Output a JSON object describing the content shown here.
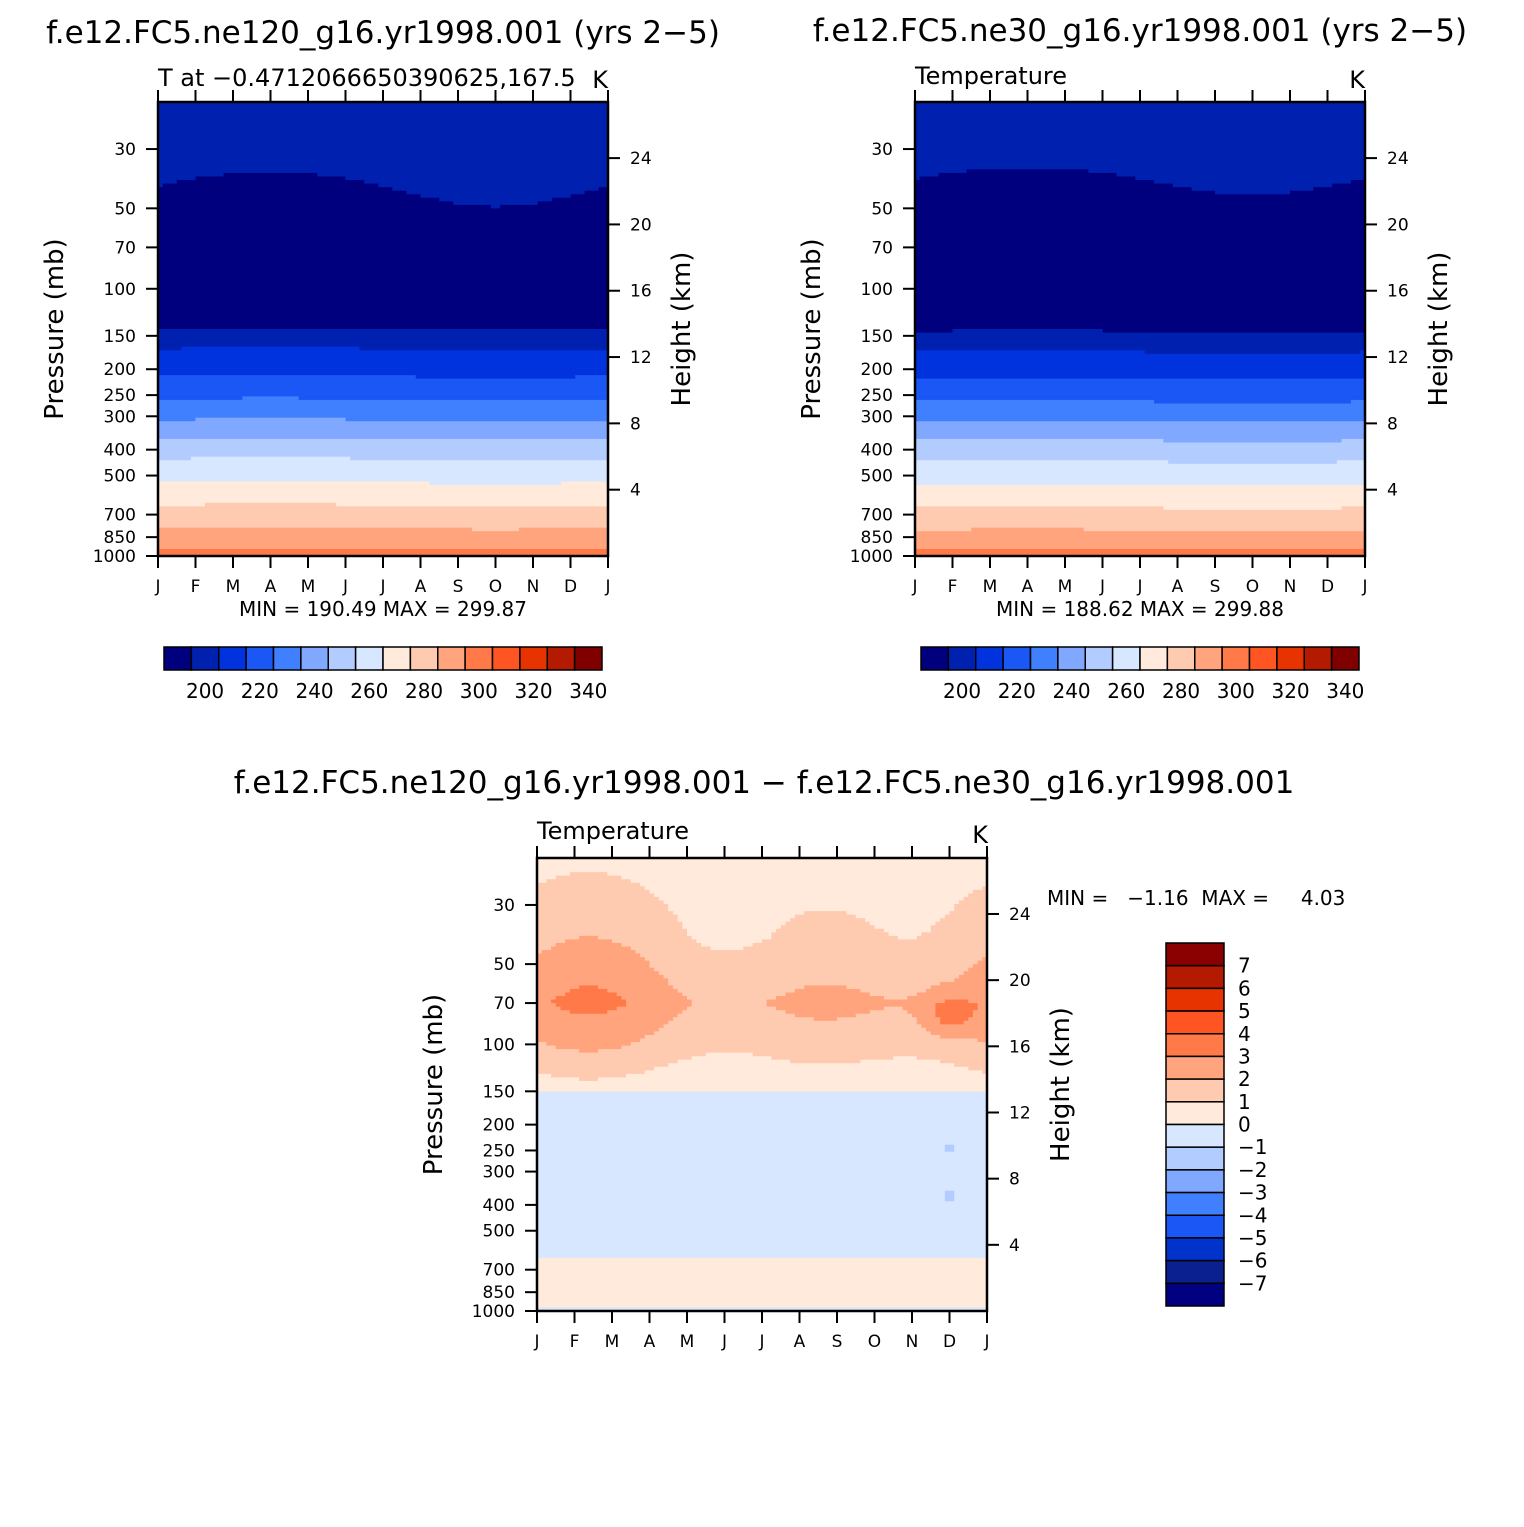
{
  "figure": {
    "panel_a": {
      "case_title": "f.e12.FC5.ne120_g16.yr1998.001 (yrs 2−5)",
      "left_string": "T at −0.4712066650390625,167.5",
      "right_string": "K",
      "stats": "MIN = 190.49 MAX = 299.87"
    },
    "panel_b": {
      "case_title": "f.e12.FC5.ne30_g16.yr1998.001 (yrs 2−5)",
      "left_string": "Temperature",
      "right_string": "K",
      "stats": "MIN = 188.62 MAX = 299.88"
    },
    "panel_diff": {
      "case_title": "f.e12.FC5.ne120_g16.yr1998.001 − f.e12.FC5.ne30_g16.yr1998.001",
      "left_string": "Temperature",
      "right_string": "K",
      "stats": "MIN =   −1.16  MAX =     4.03"
    }
  },
  "chart_data": [
    {
      "type": "heatmap",
      "id": "panel_a",
      "title": "f.e12.FC5.ne120_g16.yr1998.001 (yrs 2−5)",
      "subtitle_left": "T at −0.4712066650390625,167.5",
      "units": "K",
      "xlabel": "",
      "ylabel": "Pressure (mb)",
      "ylabel_right": "Height (km)",
      "x_ticks": [
        "J",
        "F",
        "M",
        "A",
        "M",
        "J",
        "J",
        "A",
        "S",
        "O",
        "N",
        "D",
        "J"
      ],
      "y_ticks": [
        30,
        50,
        70,
        100,
        150,
        200,
        250,
        300,
        400,
        500,
        700,
        850,
        1000
      ],
      "y_range_mb": [
        20,
        1000
      ],
      "height_ticks_km": [
        24,
        20,
        16,
        12,
        8,
        4
      ],
      "min": 190.49,
      "max": 299.87,
      "contour_levels": [
        195,
        205,
        215,
        225,
        235,
        245,
        255,
        265,
        275,
        285,
        295,
        305,
        315,
        325,
        335,
        345
      ],
      "colorbar_labels": [
        200,
        220,
        240,
        260,
        280,
        300,
        320,
        340
      ],
      "level_profile_mb": {
        "p": [
          20,
          30,
          50,
          70,
          100,
          140,
          160,
          200,
          250,
          300,
          400,
          500,
          700,
          850,
          1000
        ],
        "t": [
          204,
          200,
          192,
          190.5,
          191,
          194,
          203,
          212,
          223,
          233,
          251,
          262,
          279,
          289,
          299
        ]
      }
    },
    {
      "type": "heatmap",
      "id": "panel_b",
      "title": "f.e12.FC5.ne30_g16.yr1998.001 (yrs 2−5)",
      "subtitle_left": "Temperature",
      "units": "K",
      "xlabel": "",
      "ylabel": "Pressure (mb)",
      "ylabel_right": "Height (km)",
      "x_ticks": [
        "J",
        "F",
        "M",
        "A",
        "M",
        "J",
        "J",
        "A",
        "S",
        "O",
        "N",
        "D",
        "J"
      ],
      "y_ticks": [
        30,
        50,
        70,
        100,
        150,
        200,
        250,
        300,
        400,
        500,
        700,
        850,
        1000
      ],
      "y_range_mb": [
        20,
        1000
      ],
      "height_ticks_km": [
        24,
        20,
        16,
        12,
        8,
        4
      ],
      "min": 188.62,
      "max": 299.88,
      "contour_levels": [
        195,
        205,
        215,
        225,
        235,
        245,
        255,
        265,
        275,
        285,
        295,
        305,
        315,
        325,
        335,
        345
      ],
      "colorbar_labels": [
        200,
        220,
        240,
        260,
        280,
        300,
        320,
        340
      ],
      "level_profile_mb": {
        "p": [
          20,
          30,
          50,
          70,
          100,
          140,
          160,
          200,
          250,
          300,
          400,
          500,
          700,
          850,
          1000
        ],
        "t": [
          203,
          199,
          191,
          189,
          190,
          193,
          202,
          211,
          222,
          232,
          250,
          261,
          278,
          288,
          299
        ]
      }
    },
    {
      "type": "heatmap",
      "id": "panel_diff",
      "title": "f.e12.FC5.ne120_g16.yr1998.001 − f.e12.FC5.ne30_g16.yr1998.001",
      "subtitle_left": "Temperature",
      "units": "K",
      "xlabel": "",
      "ylabel": "Pressure (mb)",
      "ylabel_right": "Height (km)",
      "x_ticks": [
        "J",
        "F",
        "M",
        "A",
        "M",
        "J",
        "J",
        "A",
        "S",
        "O",
        "N",
        "D",
        "J"
      ],
      "y_ticks": [
        30,
        50,
        70,
        100,
        150,
        200,
        250,
        300,
        400,
        500,
        700,
        850,
        1000
      ],
      "y_range_mb": [
        20,
        1000
      ],
      "height_ticks_km": [
        24,
        20,
        16,
        12,
        8,
        4
      ],
      "min": -1.16,
      "max": 4.03,
      "contour_levels": [
        -7,
        -6,
        -5,
        -4,
        -3,
        -2,
        -1,
        0,
        1,
        2,
        3,
        4,
        5,
        6,
        7
      ],
      "colorbar_labels": [
        7,
        6,
        5,
        4,
        3,
        2,
        1,
        0,
        -1,
        -2,
        -3,
        -4,
        -5,
        -6,
        -7
      ],
      "level_profile_mb": {
        "p": [
          20,
          40,
          70,
          100,
          140,
          160,
          400,
          600,
          700,
          900,
          1000
        ],
        "diff": [
          0.6,
          1.3,
          2.4,
          1.6,
          0.5,
          -0.4,
          -0.4,
          -0.3,
          0.4,
          0.4,
          -0.2
        ]
      },
      "annotations": "local maximum ~3.5 K near 75 mb in December; small cold spots (< −1 K) near 250 mb and 350 mb in December"
    }
  ],
  "colors": {
    "temperature_fill": [
      "#00007f",
      "#0020b0",
      "#0033dd",
      "#1a57f5",
      "#4080ff",
      "#80a8ff",
      "#b3ccff",
      "#d6e7ff",
      "#ffeadb",
      "#ffcbb0",
      "#ffa47c",
      "#ff7a48",
      "#ff5522",
      "#e63300",
      "#b31a00",
      "#800000"
    ],
    "difference_fill": [
      "#000080",
      "#0a2090",
      "#0033cc",
      "#1a57f5",
      "#4080ff",
      "#80a8ff",
      "#b3ccff",
      "#d6e7ff",
      "#ffeadb",
      "#ffcbb0",
      "#ffa47c",
      "#ff7a48",
      "#ff5522",
      "#e63300",
      "#b31a00",
      "#8b0000"
    ]
  }
}
